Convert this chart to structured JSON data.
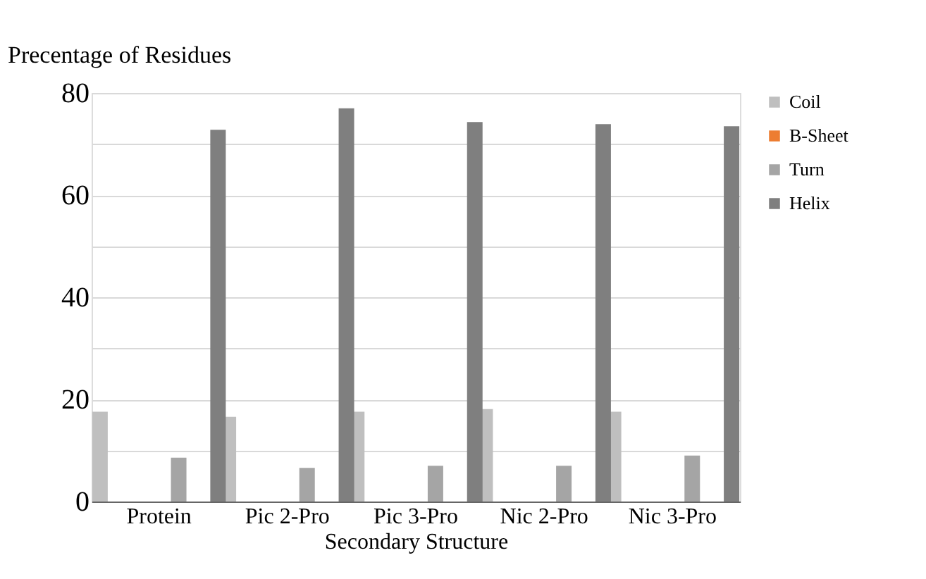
{
  "chart_data": {
    "type": "bar",
    "ylabel": "Precentage of Residues",
    "xlabel": "Secondary Structure",
    "categories": [
      "Protein",
      "Pic 2-Pro",
      "Pic 3-Pro",
      "Nic 2-Pro",
      "Nic 3-Pro"
    ],
    "series": [
      {
        "name": "Coil",
        "color": "#bfbfbf",
        "values": [
          17.6,
          16.6,
          17.6,
          18.1,
          17.6
        ]
      },
      {
        "name": "B-Sheet",
        "color": "#ed7d31",
        "values": [
          0,
          0,
          0,
          0,
          0
        ]
      },
      {
        "name": "Turn",
        "color": "#a5a5a5",
        "values": [
          8.6,
          6.6,
          7.0,
          7.0,
          9.0
        ]
      },
      {
        "name": "Helix",
        "color": "#7f7f7f",
        "values": [
          72.8,
          77.0,
          74.3,
          73.9,
          73.5
        ]
      }
    ],
    "ylim": [
      0,
      80
    ],
    "yticks": [
      0,
      {
        "value": 10,
        "label": null
      },
      20,
      {
        "value": 30,
        "label": null
      },
      40,
      {
        "value": 50,
        "label": null
      },
      60,
      {
        "value": 70,
        "label": null
      },
      80
    ],
    "grid": "y",
    "legend": "right"
  }
}
